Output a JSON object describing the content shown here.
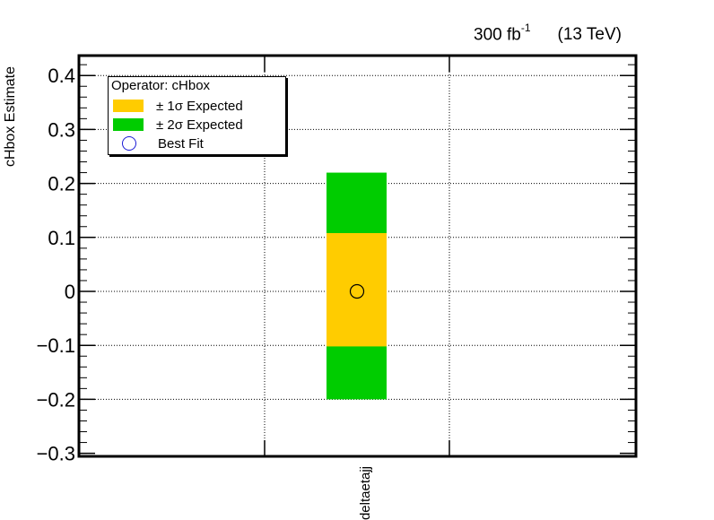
{
  "header": {
    "luminosity": "300 fb",
    "luminosity_sup": "-1",
    "energy": "(13 TeV)"
  },
  "legend": {
    "header": "Operator: cHbox",
    "entries": [
      {
        "label": "± 1σ Expected",
        "color": "#ffcc00"
      },
      {
        "label": "± 2σ Expected",
        "color": "#00cc00"
      },
      {
        "label": "Best Fit",
        "color": "#1b1bd6"
      }
    ]
  },
  "chart_data": {
    "type": "bar",
    "ylabel": "cHbox Estimate",
    "categories": [
      "deltaetajj"
    ],
    "ylim": [
      -0.3,
      0.43
    ],
    "yticks": [
      -0.3,
      -0.2,
      -0.1,
      0,
      0.1,
      0.2,
      0.3,
      0.4
    ],
    "ytick_labels": [
      "−0.3",
      "−0.2",
      "−0.1",
      "0",
      "0.1",
      "0.2",
      "0.3",
      "0.4"
    ],
    "grid": true,
    "legend_position": "top-left",
    "series": [
      {
        "name": "± 2σ Expected",
        "low": [
          -0.2
        ],
        "high": [
          0.22
        ],
        "color": "#00cc00"
      },
      {
        "name": "± 1σ Expected",
        "low": [
          -0.102
        ],
        "high": [
          0.108
        ],
        "color": "#ffcc00"
      },
      {
        "name": "Best Fit",
        "values": [
          0.0
        ],
        "color": "#1b1bd6"
      }
    ]
  }
}
